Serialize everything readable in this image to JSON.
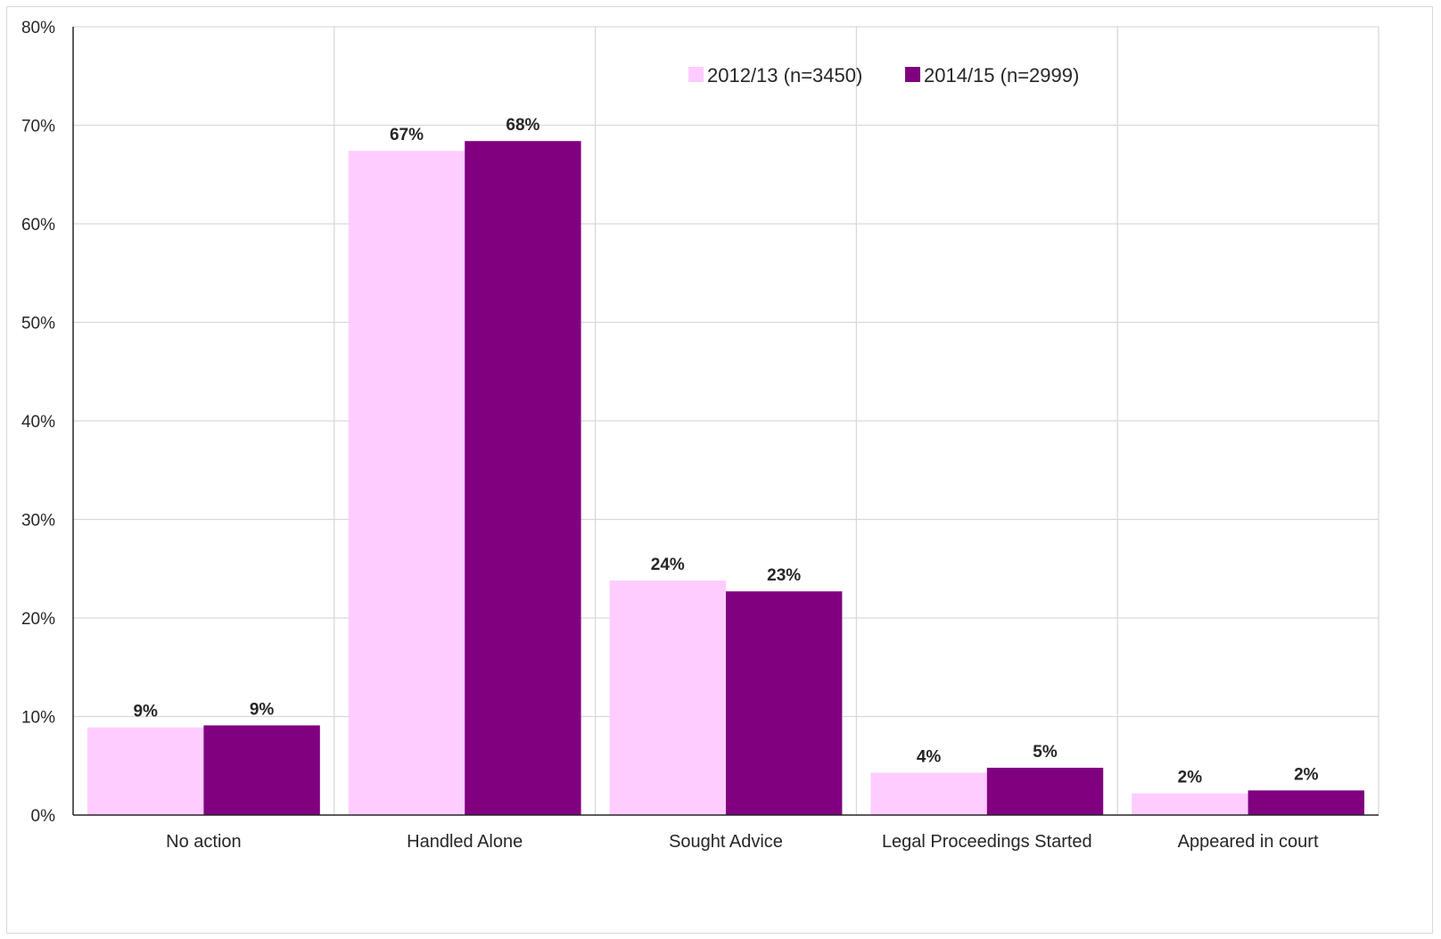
{
  "chart_data": {
    "type": "bar",
    "categories": [
      "No action",
      "Handled Alone",
      "Sought Advice",
      "Legal Proceedings Started",
      "Appeared in court"
    ],
    "series": [
      {
        "name": "2012/13 (n=3450)",
        "color": "#ffccff",
        "values": [
          8.9,
          67.4,
          23.8,
          4.3,
          2.2
        ],
        "labels": [
          "9%",
          "67%",
          "24%",
          "4%",
          "2%"
        ]
      },
      {
        "name": "2014/15 (n=2999)",
        "color": "#800080",
        "values": [
          9.1,
          68.4,
          22.7,
          4.8,
          2.5
        ],
        "labels": [
          "9%",
          "68%",
          "23%",
          "5%",
          "2%"
        ]
      }
    ],
    "ylim": [
      0,
      80
    ],
    "yticks": [
      0,
      10,
      20,
      30,
      40,
      50,
      60,
      70,
      80
    ],
    "ytick_labels": [
      "0%",
      "10%",
      "20%",
      "30%",
      "40%",
      "50%",
      "60%",
      "70%",
      "80%"
    ],
    "grid": true,
    "legend_position": "top-right"
  }
}
